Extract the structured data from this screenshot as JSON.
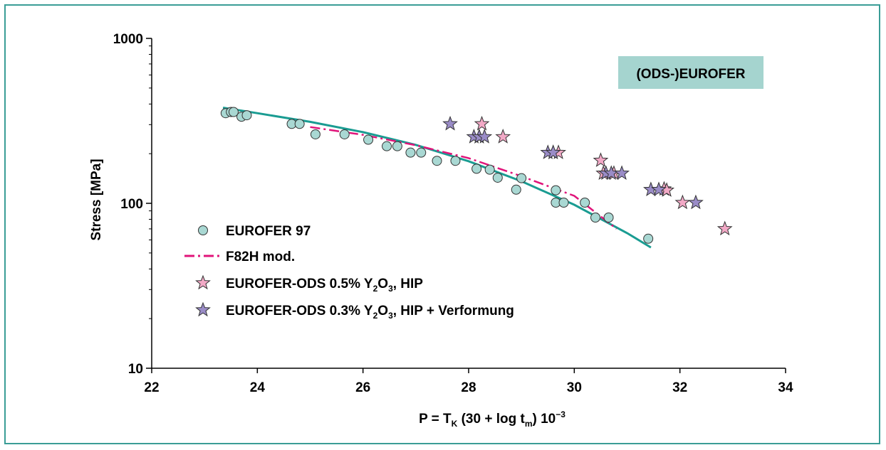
{
  "chart_data": {
    "type": "scatter",
    "title": "",
    "annotation": "(ODS-)EUROFER",
    "xlabel": {
      "main": "P = T",
      "sub1": "K",
      "mid": " (30 + log t",
      "sub2": "m",
      "end": ") 10",
      "sup": "−3"
    },
    "ylabel": "Stress [MPa]",
    "xlim": [
      22,
      34
    ],
    "ylim": [
      10,
      1000
    ],
    "y_scale": "log",
    "x_ticks": [
      "22",
      "24",
      "26",
      "28",
      "30",
      "32",
      "34"
    ],
    "y_ticks": [
      "10",
      "100",
      "1000"
    ],
    "grid": false,
    "legend_placement": "bottom-left inside plot",
    "colors": {
      "frame": "#3a9d96",
      "eurofer97_fill": "#a9d8d3",
      "fit_line": "#1a9c92",
      "f82h_line": "#e0147a",
      "ods05_fill": "#f2a9c6",
      "ods03_fill": "#9a8cc7",
      "annotation_bg": "#a5d4cf"
    },
    "legend": [
      {
        "key": "eurofer97",
        "marker": "circle",
        "label": "EUROFER 97"
      },
      {
        "key": "f82h",
        "marker": "dashdot",
        "label": "F82H mod."
      },
      {
        "key": "ods05",
        "marker": "star",
        "label_pre": "EUROFER-ODS 0.5% Y",
        "sub_a": "2",
        "label_mid": "O",
        "sub_b": "3",
        "label_post": ", HIP"
      },
      {
        "key": "ods03",
        "marker": "star",
        "label_pre": "EUROFER-ODS 0.3% Y",
        "sub_a": "2",
        "label_mid": "O",
        "sub_b": "3",
        "label_post": ", HIP + Verformung"
      }
    ],
    "series": [
      {
        "name": "EUROFER 97",
        "marker": "circle",
        "points": [
          [
            23.4,
            352
          ],
          [
            23.5,
            358
          ],
          [
            23.55,
            358
          ],
          [
            23.7,
            335
          ],
          [
            23.8,
            342
          ],
          [
            24.65,
            303
          ],
          [
            24.8,
            303
          ],
          [
            25.1,
            262
          ],
          [
            25.65,
            262
          ],
          [
            26.1,
            243
          ],
          [
            26.45,
            222
          ],
          [
            26.65,
            222
          ],
          [
            26.9,
            203
          ],
          [
            27.1,
            203
          ],
          [
            27.4,
            181
          ],
          [
            27.75,
            181
          ],
          [
            28.15,
            162
          ],
          [
            28.4,
            160
          ],
          [
            28.55,
            143
          ],
          [
            28.9,
            121
          ],
          [
            29.0,
            142
          ],
          [
            29.65,
            101
          ],
          [
            29.65,
            120
          ],
          [
            29.8,
            101
          ],
          [
            30.2,
            101
          ],
          [
            30.4,
            82
          ],
          [
            30.65,
            82
          ],
          [
            31.4,
            61
          ]
        ]
      },
      {
        "name": "EUROFER-ODS 0.5% Y2O3, HIP",
        "marker": "star",
        "points": [
          [
            28.25,
            303
          ],
          [
            28.2,
            253
          ],
          [
            28.65,
            253
          ],
          [
            29.6,
            203
          ],
          [
            29.7,
            203
          ],
          [
            30.5,
            182
          ],
          [
            30.55,
            152
          ],
          [
            30.75,
            152
          ],
          [
            31.7,
            122
          ],
          [
            31.75,
            120
          ],
          [
            32.05,
            101
          ],
          [
            32.85,
            70
          ]
        ]
      },
      {
        "name": "EUROFER-ODS 0.3% Y2O3, HIP + Verformung",
        "marker": "star",
        "points": [
          [
            27.65,
            303
          ],
          [
            28.1,
            253
          ],
          [
            28.2,
            253
          ],
          [
            28.3,
            253
          ],
          [
            29.5,
            203
          ],
          [
            29.6,
            203
          ],
          [
            30.6,
            152
          ],
          [
            30.7,
            152
          ],
          [
            30.9,
            152
          ],
          [
            31.45,
            121
          ],
          [
            31.6,
            121
          ],
          [
            32.3,
            101
          ]
        ]
      },
      {
        "name": "EUROFER 97 fit",
        "line": "solid",
        "points": [
          [
            23.35,
            380
          ],
          [
            24.0,
            352
          ],
          [
            25.0,
            312
          ],
          [
            26.0,
            270
          ],
          [
            27.0,
            226
          ],
          [
            28.0,
            180
          ],
          [
            29.0,
            136
          ],
          [
            30.0,
            98
          ],
          [
            31.0,
            66
          ],
          [
            31.45,
            54
          ]
        ]
      },
      {
        "name": "F82H mod.",
        "line": "dashdot",
        "points": [
          [
            25.0,
            290
          ],
          [
            26.0,
            260
          ],
          [
            27.0,
            225
          ],
          [
            28.0,
            188
          ],
          [
            29.0,
            146
          ],
          [
            30.0,
            111
          ],
          [
            30.8,
            70
          ]
        ]
      }
    ]
  }
}
